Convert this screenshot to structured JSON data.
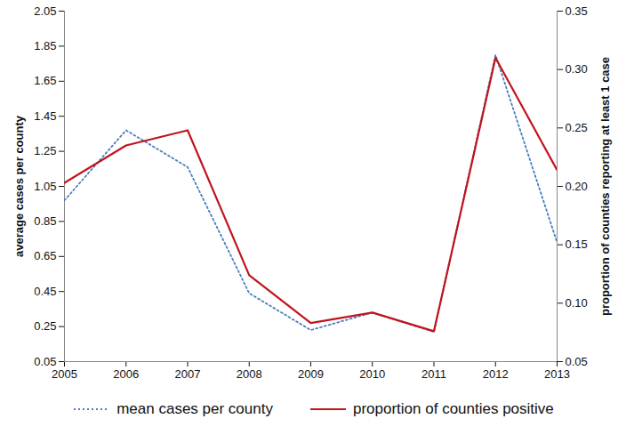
{
  "chart_data": {
    "type": "line",
    "x": [
      2005,
      2006,
      2007,
      2008,
      2009,
      2010,
      2011,
      2012,
      2013
    ],
    "xlim": [
      2005,
      2013
    ],
    "xticks": [
      2005,
      2006,
      2007,
      2008,
      2009,
      2010,
      2011,
      2012,
      2013
    ],
    "ylabel": "average cases per county",
    "ylim": [
      0.05,
      2.05
    ],
    "yticks": [
      0.05,
      0.25,
      0.45,
      0.65,
      0.85,
      1.05,
      1.25,
      1.45,
      1.65,
      1.85,
      2.05
    ],
    "y2label": "proportion of counties reporting at least 1 case",
    "y2lim": [
      0.05,
      0.35
    ],
    "y2ticks": [
      0.05,
      {
        "value": 0.1,
        "label": "0.10"
      },
      0.15,
      {
        "value": 0.2,
        "label": "0.20"
      },
      0.25,
      {
        "value": 0.3,
        "label": "0.30"
      },
      0.35
    ],
    "legend": "bottom",
    "series": [
      {
        "name": "mean cases per county",
        "color": "#4a7ebb",
        "line_style": "dotted",
        "values": [
          0.97,
          1.37,
          1.16,
          0.44,
          0.23,
          0.33,
          0.22,
          1.8,
          0.73
        ]
      },
      {
        "name": "proportion of counties positive",
        "color": "#c0141c",
        "line_style": "solid",
        "axis": "y2",
        "values": [
          0.203,
          0.235,
          0.248,
          0.124,
          0.083,
          0.092,
          0.076,
          0.31,
          0.214
        ]
      }
    ]
  }
}
